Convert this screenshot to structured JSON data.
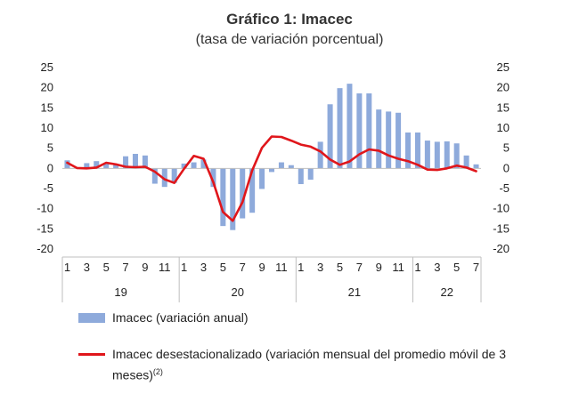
{
  "chart_data": {
    "type": "bar+line",
    "title": "Gráfico 1: Imacec",
    "subtitle": "(tasa de variación porcentual)",
    "ylim": [
      -20,
      25
    ],
    "y_ticks": [
      25,
      20,
      15,
      10,
      5,
      0,
      -5,
      -10,
      -15,
      -20
    ],
    "x_tick_labels": [
      "1",
      "",
      "3",
      "",
      "5",
      "",
      "7",
      "",
      "9",
      "",
      "11",
      "",
      "1",
      "",
      "3",
      "",
      "5",
      "",
      "7",
      "",
      "9",
      "",
      "11",
      "",
      "1",
      "",
      "3",
      "",
      "5",
      "",
      "7",
      "",
      "9",
      "",
      "11",
      "",
      "1",
      "",
      "3",
      "",
      "5",
      "",
      "7"
    ],
    "years": [
      {
        "label": "19",
        "start": 0,
        "end": 11
      },
      {
        "label": "20",
        "start": 12,
        "end": 23
      },
      {
        "label": "21",
        "start": 24,
        "end": 35
      },
      {
        "label": "22",
        "start": 36,
        "end": 42
      }
    ],
    "series": [
      {
        "name": "Imacec (variación anual)",
        "type": "bar",
        "color": "#8eaadb",
        "values": [
          2.0,
          0.3,
          1.3,
          1.8,
          1.4,
          0.9,
          3.0,
          3.6,
          3.2,
          -3.8,
          -4.6,
          -3.6,
          1.2,
          1.5,
          2.2,
          -4.6,
          -14.3,
          -15.3,
          -12.4,
          -11.0,
          -5.1,
          -0.9,
          1.5,
          0.8,
          -3.9,
          -2.8,
          6.6,
          15.9,
          19.9,
          21.0,
          18.6,
          18.6,
          14.6,
          14.1,
          13.8,
          8.9,
          8.9,
          6.9,
          6.6,
          6.7,
          6.2,
          3.2,
          1.0
        ]
      },
      {
        "name": "Imacec desestacionalizado (variación mensual del promedio móvil de 3 meses)",
        "type": "line",
        "color": "#e0161b",
        "values": [
          1.4,
          0.1,
          0.0,
          0.2,
          1.4,
          1.0,
          0.4,
          0.3,
          0.4,
          -0.8,
          -2.7,
          -3.6,
          -0.1,
          3.1,
          2.4,
          -3.4,
          -10.8,
          -13.0,
          -8.4,
          -0.5,
          5.1,
          7.9,
          7.8,
          6.9,
          5.9,
          5.4,
          4.2,
          2.2,
          0.9,
          1.7,
          3.5,
          4.7,
          4.4,
          3.2,
          2.4,
          1.8,
          0.9,
          -0.3,
          -0.4,
          0.0,
          0.7,
          0.2,
          -0.7
        ]
      }
    ],
    "legend": {
      "bar_label": "Imacec (variación anual)",
      "line_label": "Imacec desestacionalizado (variación mensual del promedio móvil de 3 meses)",
      "line_superscript": "(2)"
    }
  }
}
